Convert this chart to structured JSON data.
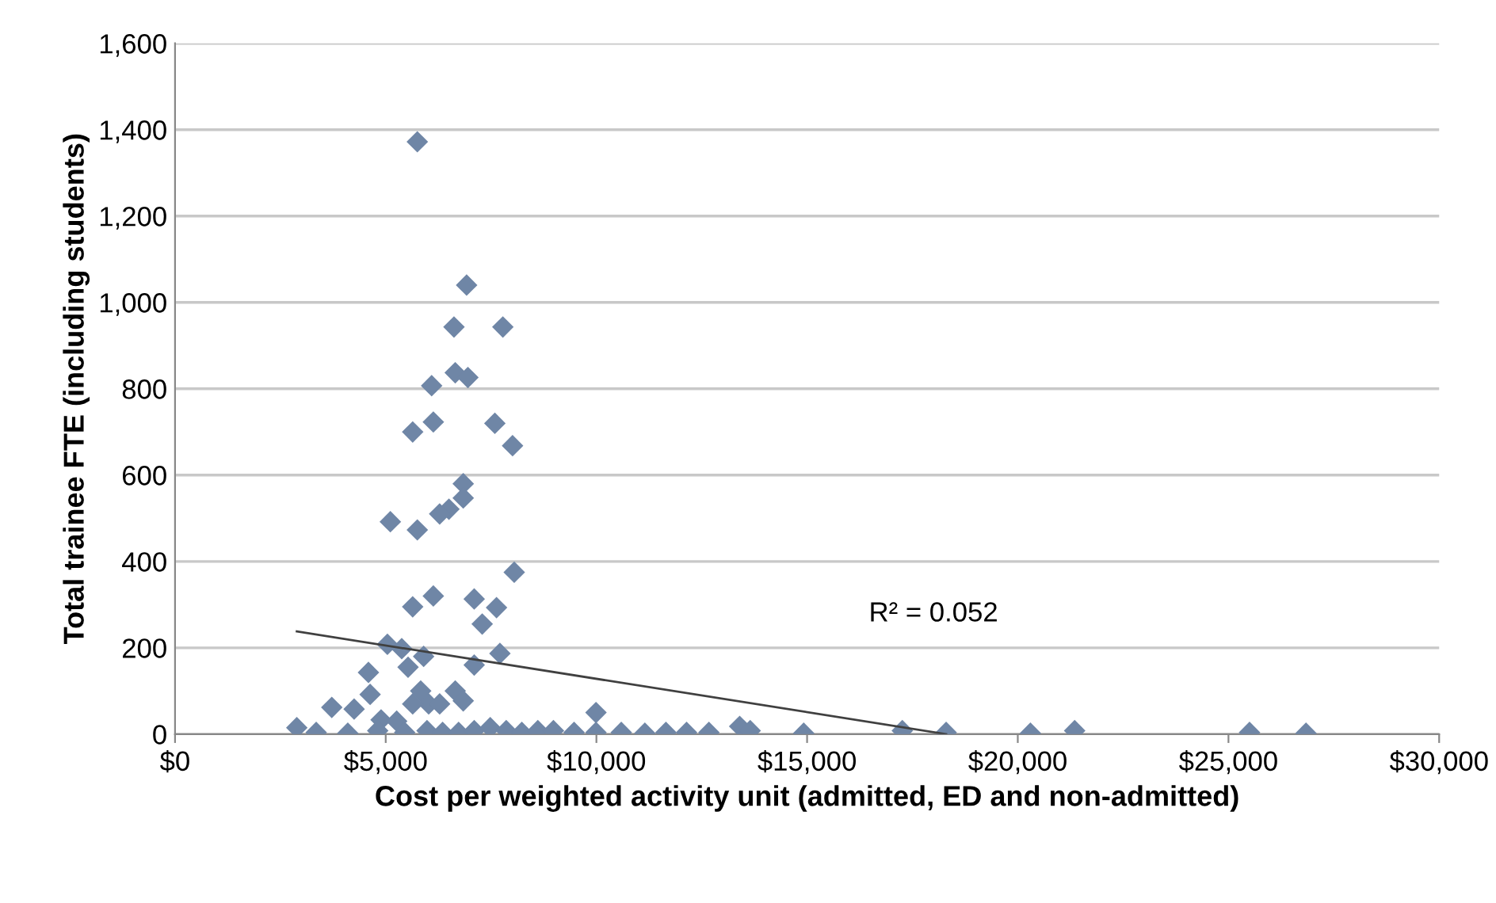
{
  "chart_data": {
    "type": "scatter",
    "xlabel": "Cost per weighted activity unit (admitted, ED and non-admitted)",
    "ylabel": "Total trainee FTE (including students)",
    "xlim": [
      0,
      30000
    ],
    "xticks": [
      {
        "value": 0,
        "label": "$0"
      },
      {
        "value": 5000,
        "label": "$5,000"
      },
      {
        "value": 10000,
        "label": "$10,000"
      },
      {
        "value": 15000,
        "label": "$15,000"
      },
      {
        "value": 20000,
        "label": "$20,000"
      },
      {
        "value": 25000,
        "label": "$25,000"
      },
      {
        "value": 30000,
        "label": "$30,000"
      }
    ],
    "ylim": [
      0,
      1600
    ],
    "yticks": [
      0,
      200,
      400,
      600,
      800,
      {
        "value": 1000,
        "label": "1,000"
      },
      {
        "value": 1200,
        "label": "1,200"
      },
      {
        "value": 1400,
        "label": "1,400"
      },
      {
        "value": 1600,
        "label": "1,600"
      }
    ],
    "grid": "y",
    "marker": "diamond",
    "annotations": [
      "R² = 0.052"
    ],
    "series": [
      {
        "color": "#6f86a6",
        "x": [
          5750,
          6920,
          6620,
          7780,
          6650,
          6950,
          6090,
          5640,
          6130,
          7590,
          8010,
          6840,
          6840,
          6500,
          6280,
          5110,
          5750,
          8050,
          5640,
          6130,
          7100,
          7630,
          7290,
          5040,
          5380,
          5900,
          7710,
          7100,
          5530,
          4590,
          4630,
          3720,
          4250,
          6650,
          6840,
          5830,
          6020,
          6280,
          5640,
          4890,
          5260,
          2890,
          3350,
          4100,
          4810,
          5450,
          5980,
          6350,
          6730,
          7100,
          7480,
          7860,
          8230,
          8610,
          8980,
          9470,
          9990,
          9990,
          10590,
          11150,
          11650,
          12140,
          12670,
          13400,
          13650,
          14920,
          17260,
          18300,
          20300,
          21350,
          25500,
          26840
        ],
        "values": [
          1372,
          1040,
          943,
          943,
          837,
          826,
          807,
          700,
          723,
          720,
          668,
          580,
          547,
          521,
          510,
          492,
          473,
          375,
          295,
          320,
          313,
          293,
          255,
          208,
          198,
          180,
          187,
          160,
          155,
          143,
          92,
          62,
          58,
          100,
          77,
          100,
          70,
          70,
          70,
          33,
          30,
          15,
          4,
          2,
          8,
          4,
          8,
          4,
          4,
          8,
          15,
          8,
          4,
          8,
          8,
          4,
          4,
          50,
          4,
          2,
          4,
          4,
          4,
          18,
          8,
          2,
          8,
          4,
          2,
          8,
          4,
          2
        ]
      },
      {
        "type": "line",
        "marker": "none",
        "color": "#404040",
        "x": [
          2890,
          18300
        ],
        "values": [
          238,
          0
        ]
      }
    ]
  }
}
